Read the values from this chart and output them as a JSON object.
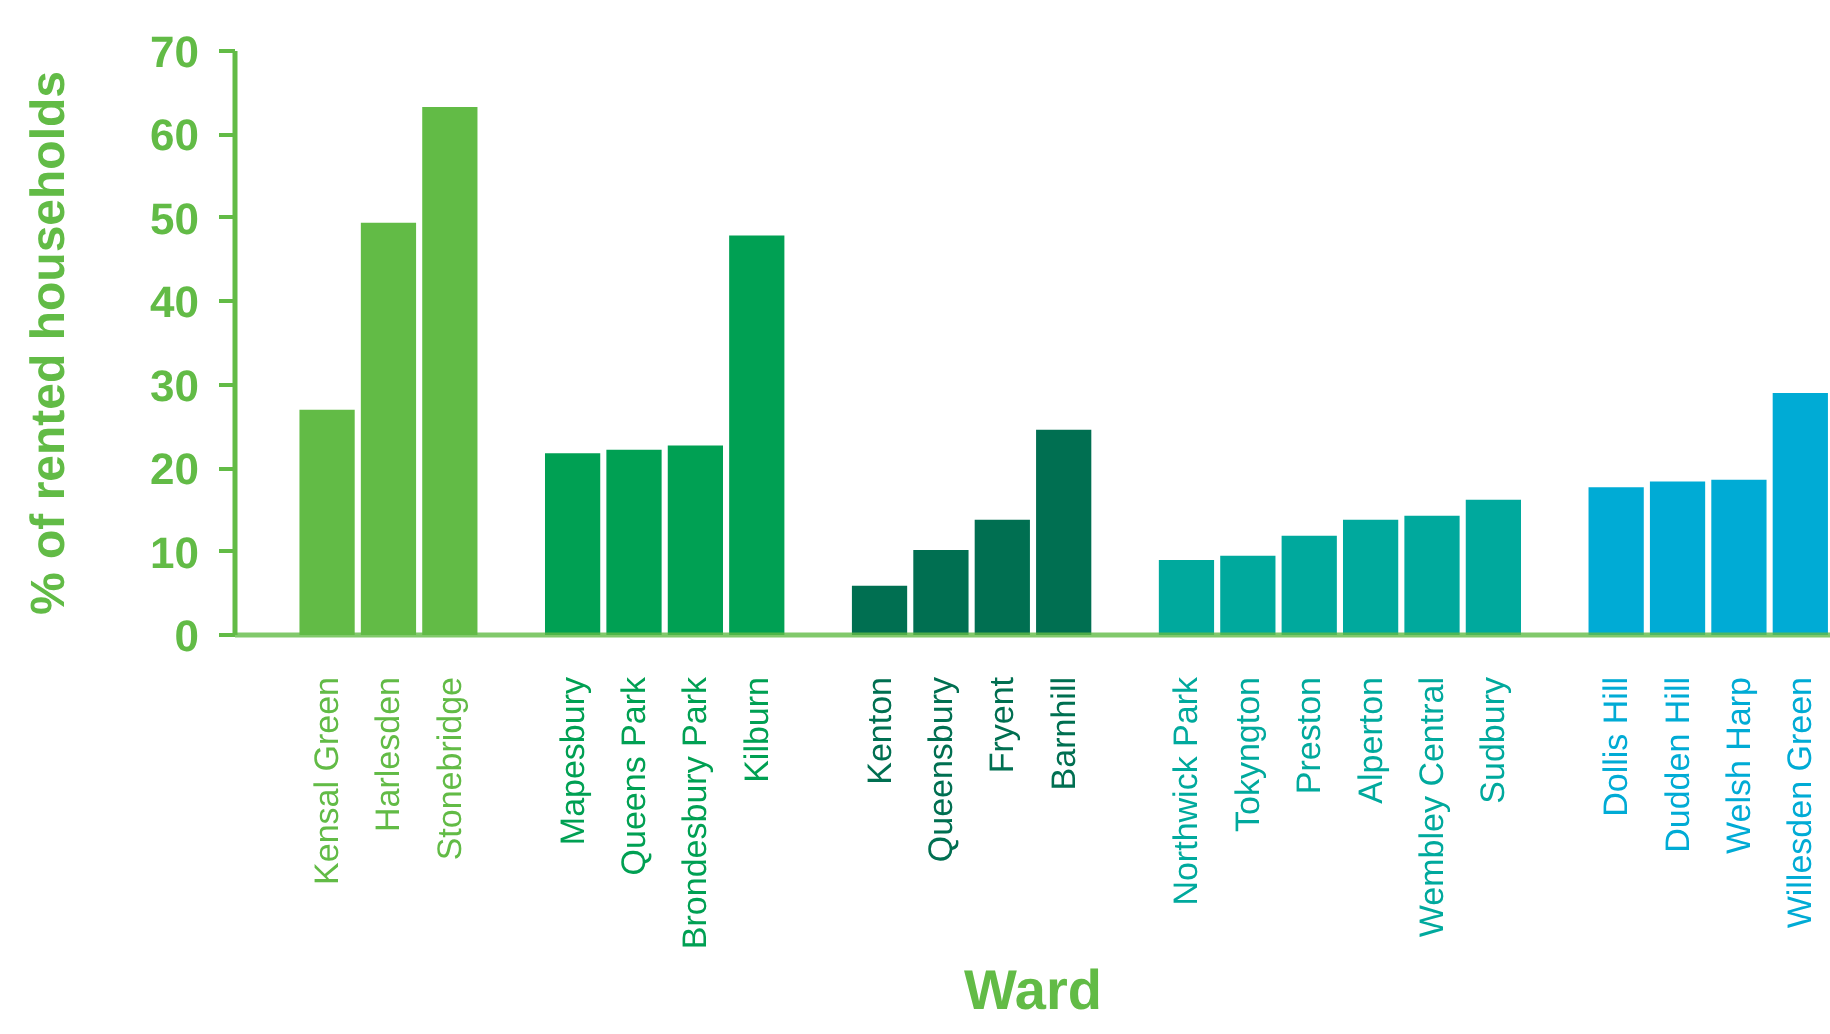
{
  "chart_data": {
    "type": "bar",
    "xlabel": "Ward",
    "ylabel": "% of rented households",
    "categories": [
      null,
      "Kensal Green",
      "Harlesden",
      "Stonebridge",
      null,
      "Mapesbury",
      "Queens Park",
      "Brondesbury Park",
      "Kilburn",
      null,
      "Kenton",
      "Queensbury",
      "Fryent",
      "Barnhill",
      null,
      "Northwick Park",
      "Tokyngton",
      "Preston",
      "Alperton",
      "Wembley Central",
      "Sudbury",
      null,
      "Dollis Hill",
      "Dudden Hill",
      "Welsh Harp",
      "Willesden Green"
    ],
    "values": [
      null,
      27.0,
      49.4,
      63.3,
      null,
      21.8,
      22.2,
      22.7,
      47.9,
      null,
      5.9,
      10.2,
      13.8,
      24.6,
      null,
      9.0,
      9.5,
      11.9,
      13.8,
      14.3,
      16.2,
      null,
      17.7,
      18.4,
      18.6,
      29.0
    ],
    "colors": [
      null,
      "#62bb46",
      "#62bb46",
      "#62bb46",
      null,
      "#00a053",
      "#00a053",
      "#00a053",
      "#00a053",
      null,
      "#006f51",
      "#006f51",
      "#006f51",
      "#006f51",
      null,
      "#00a99d",
      "#00a99d",
      "#00a99d",
      "#00a99d",
      "#00a99d",
      "#00a99d",
      null,
      "#00abd5",
      "#00abd5",
      "#00abd5",
      "#00abd5"
    ],
    "ylim": [
      0,
      70
    ],
    "yticks": [
      0,
      10,
      20,
      30,
      40,
      50,
      60,
      70
    ]
  }
}
